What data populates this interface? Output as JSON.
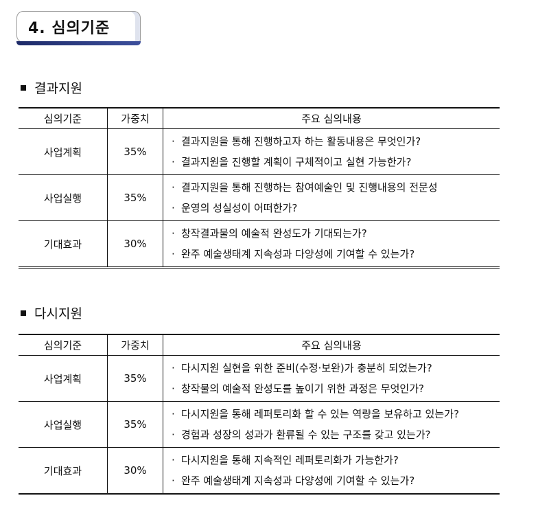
{
  "title": "4. 심의기준",
  "sections": [
    {
      "heading": "결과지원",
      "headers": [
        "심의기준",
        "가중치",
        "주요 심의내용"
      ],
      "rows": [
        {
          "criterion": "사업계획",
          "weight": "35%",
          "items": [
            "결과지원을 통해 진행하고자 하는 활동내용은 무엇인가?",
            "결과지원을 진행할 계획이 구체적이고 실현 가능한가?"
          ]
        },
        {
          "criterion": "사업실행",
          "weight": "35%",
          "items": [
            "결과지원을 통해 진행하는 참여예술인 및 진행내용의 전문성",
            "운영의 성실성이 어떠한가?"
          ]
        },
        {
          "criterion": "기대효과",
          "weight": "30%",
          "items": [
            "창작결과물의 예술적 완성도가 기대되는가?",
            "완주 예술생태계 지속성과 다양성에 기여할 수 있는가?"
          ]
        }
      ]
    },
    {
      "heading": "다시지원",
      "headers": [
        "심의기준",
        "가중치",
        "주요 심의내용"
      ],
      "rows": [
        {
          "criterion": "사업계획",
          "weight": "35%",
          "items": [
            "다시지원 실현을 위한 준비(수정·보완)가 충분히 되었는가?",
            "창작물의 예술적 완성도를 높이기 위한 과정은 무엇인가?"
          ]
        },
        {
          "criterion": "사업실행",
          "weight": "35%",
          "items": [
            "다시지원을 통해 레퍼토리화 할 수 있는 역량을 보유하고 있는가?",
            "경험과 성장의 성과가 환류될 수 있는 구조를 갖고 있는가?"
          ]
        },
        {
          "criterion": "기대효과",
          "weight": "30%",
          "items": [
            "다시지원을 통해 지속적인 레퍼토리화가 가능한가?",
            "완주 예술생태계 지속성과 다양성에 기여할 수 있는가?"
          ]
        }
      ]
    }
  ]
}
